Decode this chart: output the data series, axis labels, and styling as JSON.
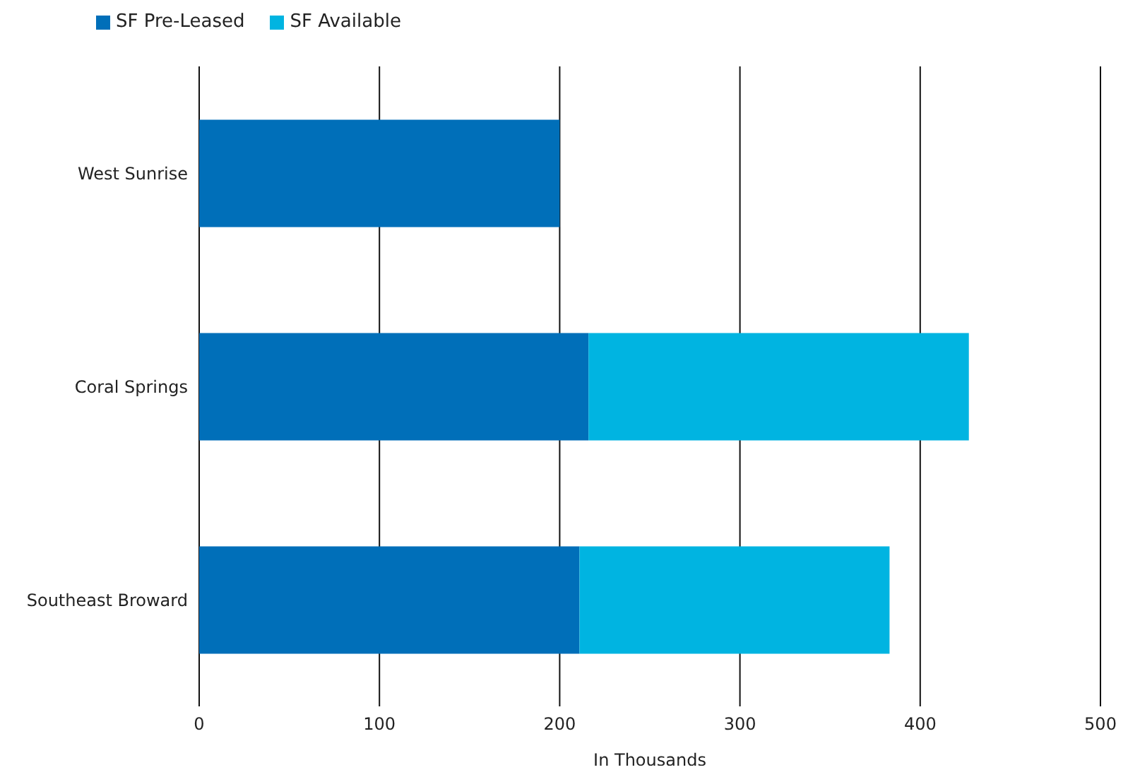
{
  "chart_data": {
    "type": "bar",
    "orientation": "horizontal",
    "stacked": true,
    "xlabel": "In Thousands",
    "categories": [
      "West Sunrise",
      "Coral Springs",
      "Southeast Broward"
    ],
    "series": [
      {
        "name": "SF Pre-Leased",
        "color": "#006fb9",
        "values": [
          200,
          216,
          211
        ]
      },
      {
        "name": "SF Available",
        "color": "#00b4e1",
        "values": [
          0,
          211,
          172
        ]
      }
    ],
    "xlim": [
      0,
      500
    ],
    "xticks": [
      0,
      100,
      200,
      300,
      400,
      500
    ],
    "grid": "x",
    "legend": "top left"
  }
}
